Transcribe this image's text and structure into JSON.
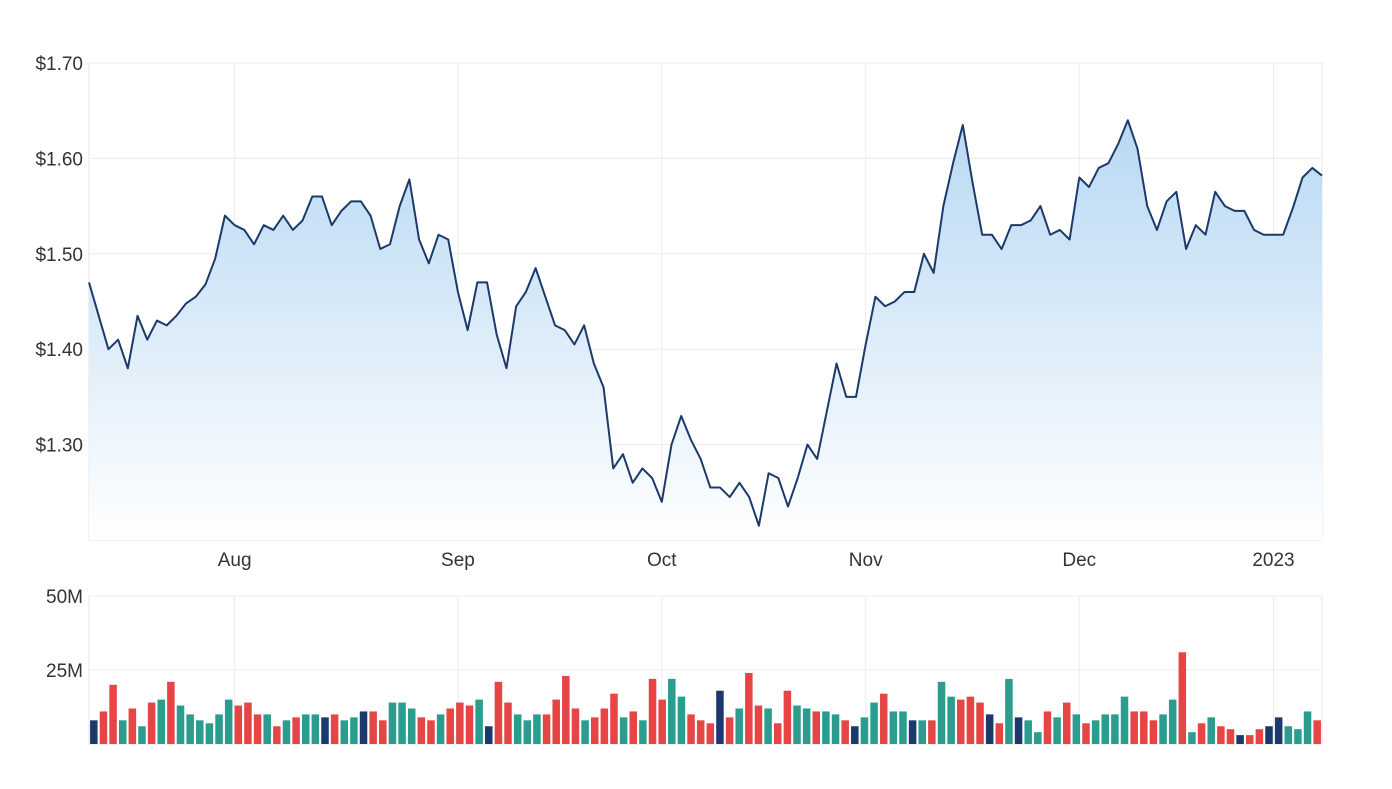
{
  "chart_data": [
    {
      "type": "area",
      "title": "",
      "xlabel": "",
      "ylabel": "",
      "ylim": [
        1.2,
        1.7
      ],
      "y_ticks": [
        {
          "value": 1.3,
          "label": "$1.30"
        },
        {
          "value": 1.4,
          "label": "$1.40"
        },
        {
          "value": 1.5,
          "label": "$1.50"
        },
        {
          "value": 1.6,
          "label": "$1.60"
        },
        {
          "value": 1.7,
          "label": "$1.70"
        }
      ],
      "x_ticks": [
        {
          "index": 15,
          "label": "Aug"
        },
        {
          "index": 38,
          "label": "Sep"
        },
        {
          "index": 59,
          "label": "Oct"
        },
        {
          "index": 80,
          "label": "Nov"
        },
        {
          "index": 102,
          "label": "Dec"
        },
        {
          "index": 122,
          "label": "2023"
        }
      ],
      "grid": true,
      "line_color": "#1b3a6b",
      "fill_color_top": "#b8d8f3",
      "fill_color_bottom": "#ffffff",
      "values": [
        1.47,
        1.435,
        1.4,
        1.41,
        1.38,
        1.435,
        1.41,
        1.43,
        1.425,
        1.435,
        1.448,
        1.455,
        1.468,
        1.495,
        1.54,
        1.53,
        1.525,
        1.51,
        1.53,
        1.525,
        1.54,
        1.525,
        1.535,
        1.56,
        1.56,
        1.53,
        1.545,
        1.555,
        1.555,
        1.54,
        1.505,
        1.51,
        1.55,
        1.578,
        1.515,
        1.49,
        1.52,
        1.515,
        1.46,
        1.42,
        1.47,
        1.47,
        1.415,
        1.38,
        1.445,
        1.46,
        1.485,
        1.455,
        1.425,
        1.42,
        1.405,
        1.425,
        1.385,
        1.36,
        1.275,
        1.29,
        1.26,
        1.275,
        1.265,
        1.24,
        1.3,
        1.33,
        1.305,
        1.285,
        1.255,
        1.255,
        1.245,
        1.26,
        1.245,
        1.215,
        1.27,
        1.265,
        1.235,
        1.265,
        1.3,
        1.285,
        1.335,
        1.385,
        1.35,
        1.35,
        1.405,
        1.455,
        1.445,
        1.45,
        1.46,
        1.46,
        1.5,
        1.48,
        1.55,
        1.595,
        1.635,
        1.575,
        1.52,
        1.52,
        1.505,
        1.53,
        1.53,
        1.535,
        1.55,
        1.52,
        1.525,
        1.515,
        1.58,
        1.57,
        1.59,
        1.595,
        1.615,
        1.64,
        1.61,
        1.55,
        1.525,
        1.555,
        1.565,
        1.505,
        1.53,
        1.52,
        1.565,
        1.55,
        1.545,
        1.545,
        1.525,
        1.52,
        1.52,
        1.52,
        1.548,
        1.58,
        1.59,
        1.582
      ]
    },
    {
      "type": "bar",
      "title": "",
      "xlabel": "",
      "ylabel": "",
      "ylim": [
        0,
        50
      ],
      "y_unit": "M",
      "y_ticks": [
        {
          "value": 25,
          "label": "25M"
        },
        {
          "value": 50,
          "label": "50M"
        }
      ],
      "grid": true,
      "colors": {
        "up": "#2a9d8f",
        "down": "#e64545",
        "flat": "#1b3a6b"
      },
      "values": [
        8,
        11,
        20,
        8,
        12,
        6,
        14,
        15,
        21,
        13,
        10,
        8,
        7,
        10,
        15,
        13,
        14,
        10,
        10,
        6,
        8,
        9,
        10,
        10,
        9,
        10,
        8,
        9,
        11,
        11,
        8,
        14,
        14,
        12,
        9,
        8,
        10,
        12,
        14,
        13,
        15,
        6,
        21,
        14,
        10,
        8,
        10,
        10,
        15,
        23,
        12,
        8,
        9,
        12,
        17,
        9,
        11,
        8,
        22,
        15,
        22,
        16,
        10,
        8,
        7,
        18,
        9,
        12,
        24,
        13,
        12,
        7,
        18,
        13,
        12,
        11,
        11,
        10,
        8,
        6,
        9,
        14,
        17,
        11,
        11,
        8,
        8,
        8,
        21,
        16,
        15,
        16,
        14,
        10,
        7,
        22,
        9,
        8,
        4,
        11,
        9,
        14,
        10,
        7,
        8,
        10,
        10,
        16,
        11,
        11,
        8,
        10,
        15,
        31,
        4,
        7,
        9,
        6,
        5,
        3,
        3,
        5,
        6,
        9,
        6,
        5,
        11,
        8
      ],
      "directions": [
        "flat",
        "down",
        "down",
        "up",
        "down",
        "up",
        "down",
        "up",
        "down",
        "up",
        "up",
        "up",
        "up",
        "up",
        "up",
        "down",
        "down",
        "down",
        "up",
        "down",
        "up",
        "down",
        "up",
        "up",
        "flat",
        "down",
        "up",
        "up",
        "flat",
        "down",
        "down",
        "up",
        "up",
        "up",
        "down",
        "down",
        "up",
        "down",
        "down",
        "down",
        "up",
        "flat",
        "down",
        "down",
        "up",
        "up",
        "up",
        "down",
        "down",
        "down",
        "down",
        "up",
        "down",
        "down",
        "down",
        "up",
        "down",
        "up",
        "down",
        "down",
        "up",
        "up",
        "down",
        "down",
        "down",
        "flat",
        "down",
        "up",
        "down",
        "down",
        "up",
        "down",
        "down",
        "up",
        "up",
        "down",
        "up",
        "up",
        "down",
        "flat",
        "up",
        "up",
        "down",
        "up",
        "up",
        "flat",
        "up",
        "down",
        "up",
        "up",
        "down",
        "down",
        "down",
        "flat",
        "down",
        "up",
        "flat",
        "up",
        "up",
        "down",
        "up",
        "down",
        "up",
        "down",
        "up",
        "up",
        "up",
        "up",
        "down",
        "down",
        "down",
        "up",
        "up",
        "down",
        "up",
        "down",
        "up",
        "down",
        "down",
        "flat",
        "down",
        "down",
        "flat",
        "flat",
        "up",
        "up",
        "up",
        "down"
      ]
    }
  ]
}
